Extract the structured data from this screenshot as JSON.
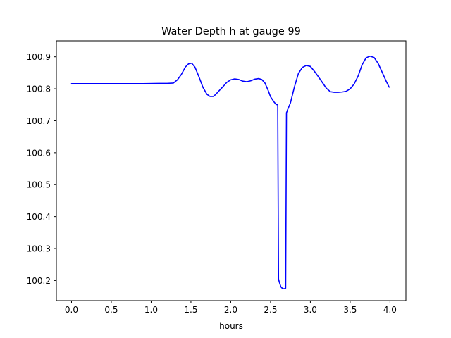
{
  "chart_data": {
    "type": "line",
    "title": "Water Depth h at gauge 99",
    "xlabel": "hours",
    "ylabel": "",
    "xlim": [
      -0.19,
      4.2
    ],
    "ylim": [
      100.137,
      100.95
    ],
    "xticks": [
      0.0,
      0.5,
      1.0,
      1.5,
      2.0,
      2.5,
      3.0,
      3.5,
      4.0
    ],
    "xtick_labels": [
      "0.0",
      "0.5",
      "1.0",
      "1.5",
      "2.0",
      "2.5",
      "3.0",
      "3.5",
      "4.0"
    ],
    "yticks": [
      100.2,
      100.3,
      100.4,
      100.5,
      100.6,
      100.7,
      100.8,
      100.9
    ],
    "ytick_labels": [
      "100.2",
      "100.3",
      "100.4",
      "100.5",
      "100.6",
      "100.7",
      "100.8",
      "100.9"
    ],
    "grid": false,
    "series": [
      {
        "color": "#0000ff",
        "x": [
          0.0,
          0.3,
          0.6,
          0.9,
          1.1,
          1.2,
          1.28,
          1.33,
          1.38,
          1.43,
          1.47,
          1.51,
          1.55,
          1.6,
          1.65,
          1.7,
          1.74,
          1.78,
          1.81,
          1.85,
          1.9,
          1.95,
          2.0,
          2.05,
          2.1,
          2.15,
          2.2,
          2.25,
          2.3,
          2.35,
          2.39,
          2.43,
          2.47,
          2.5,
          2.54,
          2.57,
          2.59,
          2.6,
          2.61,
          2.63,
          2.65,
          2.67,
          2.69,
          2.7,
          2.705,
          2.71,
          2.75,
          2.8,
          2.85,
          2.9,
          2.95,
          3.0,
          3.05,
          3.1,
          3.15,
          3.2,
          3.25,
          3.3,
          3.35,
          3.4,
          3.45,
          3.5,
          3.55,
          3.6,
          3.65,
          3.7,
          3.75,
          3.8,
          3.85,
          3.9,
          3.95,
          3.99
        ],
        "y": [
          100.816,
          100.816,
          100.816,
          100.816,
          100.817,
          100.817,
          100.818,
          100.828,
          100.845,
          100.868,
          100.878,
          100.88,
          100.868,
          100.838,
          100.805,
          100.783,
          100.776,
          100.776,
          100.782,
          100.793,
          100.806,
          100.82,
          100.828,
          100.831,
          100.829,
          100.824,
          100.822,
          100.825,
          100.83,
          100.832,
          100.829,
          100.818,
          100.795,
          100.775,
          100.76,
          100.751,
          100.75,
          100.205,
          100.195,
          100.18,
          100.175,
          100.174,
          100.176,
          100.725,
          100.728,
          100.732,
          100.756,
          100.806,
          100.848,
          100.867,
          100.873,
          100.87,
          100.855,
          100.838,
          100.82,
          100.802,
          100.791,
          100.789,
          100.789,
          100.79,
          100.792,
          100.8,
          100.815,
          100.84,
          100.875,
          100.897,
          100.902,
          100.898,
          100.88,
          100.853,
          100.825,
          100.805
        ]
      }
    ]
  }
}
